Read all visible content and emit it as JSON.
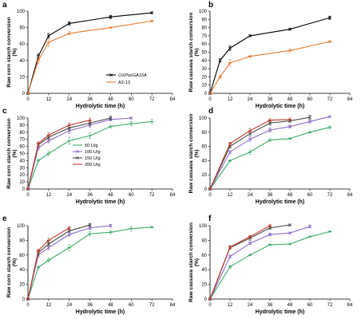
{
  "chart_data": [
    {
      "panel": "a",
      "type": "line",
      "ylabel": "Raw corn starch conversion (%)",
      "xlabel": "Hydrolytic time (h)",
      "xlim": [
        0,
        84
      ],
      "ylim": [
        0,
        100
      ],
      "xticks": [
        0,
        12,
        24,
        36,
        48,
        60,
        72,
        84
      ],
      "yticks": [
        0,
        20,
        40,
        60,
        80,
        100
      ],
      "legend": "bottom-right",
      "series": [
        {
          "name": "OXPoxGA15A",
          "color": "#000000",
          "marker": "cross",
          "x": [
            0,
            6,
            12,
            24,
            48,
            72
          ],
          "y": [
            0,
            45,
            70,
            85,
            93,
            98
          ],
          "err": [
            0,
            3,
            3,
            2,
            2,
            1
          ]
        },
        {
          "name": "A2-13",
          "color": "#e87a2e",
          "marker": "dash",
          "x": [
            0,
            6,
            12,
            24,
            48,
            72
          ],
          "y": [
            0,
            40,
            62,
            73,
            80,
            88
          ],
          "err": [
            0,
            4,
            5,
            2,
            1,
            1
          ]
        }
      ]
    },
    {
      "panel": "b",
      "type": "line",
      "ylabel": "Raw cassava starch conversion (%)",
      "xlabel": "Hydrolytic time (h)",
      "xlim": [
        0,
        84
      ],
      "ylim": [
        0,
        100
      ],
      "xticks": [
        0,
        12,
        24,
        36,
        48,
        60,
        72,
        84
      ],
      "yticks": [
        0,
        10,
        20,
        30,
        40,
        50,
        60,
        70,
        80,
        90,
        100
      ],
      "series": [
        {
          "name": "OXPoxGA15A",
          "color": "#000000",
          "marker": "cross",
          "x": [
            0,
            6,
            12,
            24,
            48,
            72
          ],
          "y": [
            0,
            40,
            55,
            70,
            78,
            92
          ],
          "err": [
            0,
            2,
            3,
            1,
            1,
            2
          ]
        },
        {
          "name": "A2-13",
          "color": "#e87a2e",
          "marker": "dash",
          "x": [
            0,
            6,
            12,
            24,
            48,
            72
          ],
          "y": [
            0,
            20,
            37,
            45,
            52,
            63
          ],
          "err": [
            0,
            2,
            4,
            1,
            2,
            1
          ]
        }
      ]
    },
    {
      "panel": "c",
      "type": "line",
      "ylabel": "Raw corn starch conversion (%)",
      "xlabel": "Hydrolytic time (h)",
      "xlim": [
        0,
        84
      ],
      "ylim": [
        0,
        100
      ],
      "xticks": [
        0,
        12,
        24,
        36,
        48,
        60,
        72,
        84
      ],
      "yticks": [
        0,
        10,
        20,
        30,
        40,
        50,
        60,
        70,
        80,
        90,
        100
      ],
      "legend": "center-right",
      "series": [
        {
          "name": "50 U/g",
          "color": "#3daa6a",
          "marker": "dash",
          "x": [
            0,
            6,
            12,
            24,
            36,
            48,
            60,
            72
          ],
          "y": [
            0,
            40,
            50,
            68,
            75,
            88,
            92,
            95
          ],
          "err": [
            0,
            2,
            3,
            5,
            4,
            2,
            3,
            3
          ]
        },
        {
          "name": "100 U/g",
          "color": "#8e6cc8",
          "marker": "cross",
          "x": [
            0,
            6,
            12,
            24,
            36,
            48,
            60
          ],
          "y": [
            0,
            58,
            68,
            82,
            90,
            98,
            100
          ],
          "err": [
            0,
            3,
            3,
            4,
            3,
            2,
            1
          ]
        },
        {
          "name": "150 U/g",
          "color": "#4a4a4a",
          "marker": "cross",
          "x": [
            0,
            6,
            12,
            24,
            36,
            48
          ],
          "y": [
            0,
            62,
            73,
            86,
            93,
            100
          ],
          "err": [
            0,
            3,
            3,
            3,
            3,
            3
          ]
        },
        {
          "name": "200 U/g",
          "color": "#c0392b",
          "marker": "dash",
          "x": [
            0,
            6,
            12,
            24,
            36
          ],
          "y": [
            0,
            64,
            76,
            90,
            97
          ],
          "err": [
            0,
            3,
            3,
            3,
            3
          ]
        }
      ]
    },
    {
      "panel": "d",
      "type": "line",
      "ylabel": "Raw cassava starch conversion (%)",
      "xlabel": "Hydrolytic time (h)",
      "xlim": [
        0,
        84
      ],
      "ylim": [
        0,
        100
      ],
      "xticks": [
        0,
        12,
        24,
        36,
        48,
        60,
        72,
        84
      ],
      "yticks": [
        0,
        20,
        40,
        60,
        80,
        100
      ],
      "series": [
        {
          "name": "50 U/g",
          "color": "#3daa6a",
          "marker": "dash",
          "x": [
            0,
            12,
            24,
            36,
            48,
            60,
            72
          ],
          "y": [
            0,
            40,
            52,
            69,
            71,
            80,
            87
          ],
          "err": [
            0,
            1,
            3,
            2,
            1,
            1,
            2
          ]
        },
        {
          "name": "100 U/g",
          "color": "#8e6cc8",
          "marker": "cross",
          "x": [
            0,
            12,
            24,
            36,
            48,
            60,
            72
          ],
          "y": [
            0,
            52,
            70,
            83,
            88,
            95,
            102
          ],
          "err": [
            0,
            2,
            3,
            3,
            2,
            2,
            1
          ]
        },
        {
          "name": "150 U/g",
          "color": "#4a4a4a",
          "marker": "cross",
          "x": [
            0,
            12,
            24,
            36,
            48,
            60
          ],
          "y": [
            0,
            60,
            78,
            93,
            96,
            101
          ],
          "err": [
            0,
            2,
            3,
            3,
            2,
            3
          ]
        },
        {
          "name": "200 U/g",
          "color": "#c0392b",
          "marker": "dash",
          "x": [
            0,
            12,
            24,
            36,
            48
          ],
          "y": [
            0,
            64,
            82,
            97,
            98
          ],
          "err": [
            0,
            2,
            3,
            2,
            2
          ]
        }
      ]
    },
    {
      "panel": "e",
      "type": "line",
      "ylabel": "Raw corn starch conversion (%)",
      "xlabel": "Hydrolytic time (h)",
      "xlim": [
        0,
        84
      ],
      "ylim": [
        0,
        100
      ],
      "xticks": [
        0,
        12,
        24,
        36,
        48,
        60,
        72,
        84
      ],
      "yticks": [
        0,
        20,
        40,
        60,
        80,
        100
      ],
      "series": [
        {
          "name": "50 U/g",
          "color": "#3daa6a",
          "marker": "dash",
          "x": [
            0,
            6,
            12,
            24,
            36,
            48,
            60,
            72
          ],
          "y": [
            0,
            43,
            53,
            70,
            89,
            91,
            96,
            98
          ],
          "err": [
            0,
            2,
            3,
            4,
            3,
            2,
            3,
            1
          ]
        },
        {
          "name": "100 U/g",
          "color": "#8e6cc8",
          "marker": "cross",
          "x": [
            0,
            6,
            12,
            24,
            36,
            48
          ],
          "y": [
            0,
            60,
            70,
            88,
            97,
            100
          ],
          "err": [
            0,
            3,
            3,
            3,
            2,
            2
          ]
        },
        {
          "name": "150 U/g",
          "color": "#4a4a4a",
          "marker": "cross",
          "x": [
            0,
            6,
            12,
            24,
            36
          ],
          "y": [
            0,
            63,
            75,
            93,
            101
          ],
          "err": [
            0,
            3,
            3,
            2,
            2
          ]
        },
        {
          "name": "200 U/g",
          "color": "#c0392b",
          "marker": "dash",
          "x": [
            0,
            6,
            12,
            24
          ],
          "y": [
            0,
            66,
            80,
            97
          ],
          "err": [
            0,
            2,
            3,
            2
          ]
        }
      ]
    },
    {
      "panel": "f",
      "type": "line",
      "ylabel": "Raw cassava starch conversion (%)",
      "xlabel": "Hydrolytic time (h)",
      "xlim": [
        0,
        84
      ],
      "ylim": [
        0,
        100
      ],
      "xticks": [
        0,
        12,
        24,
        36,
        48,
        60,
        72,
        84
      ],
      "yticks": [
        0,
        20,
        40,
        60,
        80,
        100
      ],
      "series": [
        {
          "name": "50 U/g",
          "color": "#3daa6a",
          "marker": "dash",
          "x": [
            0,
            12,
            24,
            36,
            48,
            60,
            72
          ],
          "y": [
            0,
            44,
            60,
            74,
            75,
            85,
            92
          ],
          "err": [
            0,
            2,
            1,
            1,
            1,
            1,
            1
          ]
        },
        {
          "name": "100 U/g",
          "color": "#8e6cc8",
          "marker": "cross",
          "x": [
            0,
            12,
            24,
            36,
            48,
            60
          ],
          "y": [
            0,
            58,
            76,
            88,
            90,
            99
          ],
          "err": [
            0,
            2,
            2,
            2,
            1,
            2
          ]
        },
        {
          "name": "150 U/g",
          "color": "#4a4a4a",
          "marker": "cross",
          "x": [
            0,
            12,
            24,
            36,
            48
          ],
          "y": [
            0,
            70,
            83,
            97,
            101
          ],
          "err": [
            0,
            2,
            3,
            2,
            1
          ]
        },
        {
          "name": "200 U/g",
          "color": "#c0392b",
          "marker": "dash",
          "x": [
            0,
            12,
            24,
            36
          ],
          "y": [
            0,
            71,
            85,
            100
          ],
          "err": [
            0,
            2,
            2,
            2
          ]
        }
      ]
    }
  ]
}
